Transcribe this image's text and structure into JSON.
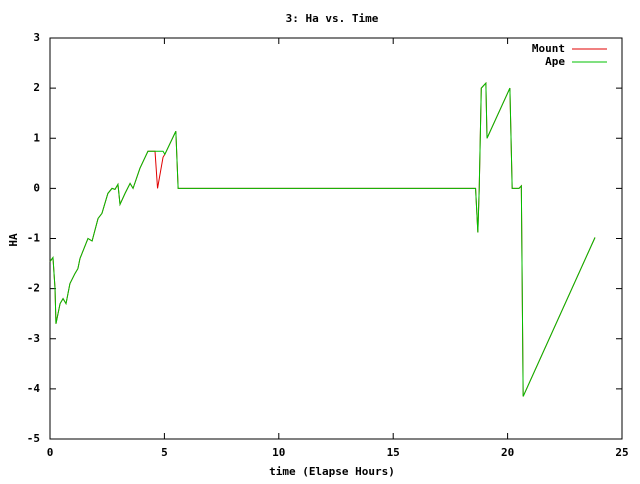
{
  "chart_data": {
    "type": "line",
    "title": "3: Ha vs. Time",
    "xlabel": "time (Elapse Hours)",
    "ylabel": "HA",
    "x": [
      0,
      0.13,
      0.22,
      0.26,
      0.44,
      0.57,
      0.7,
      0.87,
      1.09,
      1.22,
      1.31,
      1.66,
      1.84,
      2.1,
      2.27,
      2.53,
      2.71,
      2.84,
      2.97,
      3.06,
      3.28,
      3.5,
      3.63,
      3.93,
      4.28,
      4.59,
      4.7,
      4.94,
      5.02,
      5.5,
      5.6,
      18.6,
      18.7,
      18.76,
      18.85,
      19.05,
      19.1,
      20.1,
      20.2,
      20.5,
      20.6,
      20.68,
      23.82
    ],
    "series": [
      {
        "name": "Mount",
        "color": "#e00000",
        "values": [
          -1.46,
          -1.38,
          -2.0,
          -2.7,
          -2.3,
          -2.2,
          -2.3,
          -1.9,
          -1.7,
          -1.6,
          -1.4,
          -1.0,
          -1.05,
          -0.6,
          -0.5,
          -0.1,
          0.0,
          -0.02,
          0.08,
          -0.32,
          -0.1,
          0.1,
          0.0,
          0.4,
          0.74,
          0.74,
          0.0,
          0.62,
          0.68,
          1.14,
          0.0,
          0.0,
          -0.88,
          0.0,
          2.0,
          2.1,
          1.0,
          2.0,
          0.0,
          0.0,
          0.05,
          -4.15,
          -0.98
        ]
      },
      {
        "name": "Ape",
        "color": "#00c000",
        "values": [
          -1.46,
          -1.38,
          -2.0,
          -2.7,
          -2.3,
          -2.2,
          -2.3,
          -1.9,
          -1.7,
          -1.6,
          -1.4,
          -1.0,
          -1.05,
          -0.6,
          -0.5,
          -0.1,
          0.0,
          -0.02,
          0.08,
          -0.32,
          -0.1,
          0.1,
          0.0,
          0.4,
          0.74,
          0.74,
          0.74,
          0.74,
          0.68,
          1.14,
          0.0,
          0.0,
          -0.88,
          0.0,
          2.0,
          2.1,
          1.0,
          2.0,
          0.0,
          0.0,
          0.05,
          -4.15,
          -0.98
        ]
      }
    ],
    "xlim": [
      0,
      25
    ],
    "xticks": [
      0,
      5,
      10,
      15,
      20,
      25
    ],
    "ylim": [
      -5,
      3
    ],
    "yticks": [
      -5,
      -4,
      -3,
      -2,
      -1,
      0,
      1,
      2,
      3
    ],
    "legend": "top-right",
    "grid": false
  }
}
